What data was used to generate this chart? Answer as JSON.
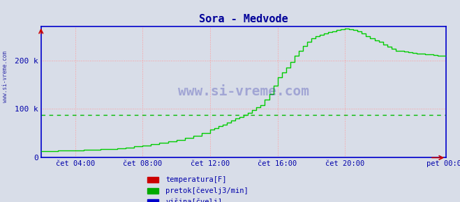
{
  "title": "Sora - Medvode",
  "title_color": "#000099",
  "bg_color": "#d8dde8",
  "plot_bg_color": "#d8dde8",
  "ylabel_color": "#0000aa",
  "axis_color": "#0000cc",
  "xlim": [
    0,
    288
  ],
  "ylim": [
    0,
    270000
  ],
  "yticks": [
    0,
    100000,
    200000
  ],
  "ytick_labels": [
    "0",
    "100 k",
    "200 k"
  ],
  "xtick_positions": [
    24,
    72,
    120,
    168,
    216,
    288
  ],
  "xtick_labels": [
    "čet 04:00",
    "čet 08:00",
    "čet 12:00",
    "čet 16:00",
    "čet 20:00",
    "pet 00:00"
  ],
  "watermark": "www.si-vreme.com",
  "watermark_color": "#000099",
  "avg_line_value": 88000,
  "avg_line_color": "#00bb00",
  "legend": [
    {
      "label": "temperatura[F]",
      "color": "#cc0000"
    },
    {
      "label": "pretok[čevelj3/min]",
      "color": "#00aa00"
    },
    {
      "label": "višina[čvelj]",
      "color": "#0000cc"
    }
  ],
  "flow_data_x": [
    0,
    6,
    12,
    18,
    24,
    30,
    36,
    42,
    48,
    54,
    60,
    66,
    72,
    78,
    84,
    90,
    96,
    102,
    108,
    114,
    120,
    123,
    126,
    129,
    132,
    135,
    138,
    141,
    144,
    147,
    150,
    153,
    156,
    159,
    162,
    165,
    168,
    171,
    174,
    177,
    180,
    183,
    186,
    189,
    192,
    195,
    198,
    201,
    204,
    207,
    210,
    213,
    216,
    219,
    222,
    225,
    228,
    231,
    234,
    237,
    240,
    243,
    246,
    249,
    252,
    255,
    258,
    261,
    264,
    267,
    270,
    273,
    276,
    279,
    282,
    285,
    288
  ],
  "flow_data_y": [
    13000,
    13500,
    14000,
    14500,
    15000,
    15500,
    16000,
    17000,
    18000,
    19500,
    21000,
    23000,
    25000,
    27500,
    30000,
    33000,
    36000,
    40000,
    45000,
    51000,
    58000,
    61000,
    65000,
    68000,
    72000,
    76000,
    80000,
    84000,
    88000,
    92000,
    97000,
    103000,
    108000,
    119000,
    130000,
    148000,
    165000,
    175000,
    185000,
    197000,
    210000,
    220000,
    230000,
    238000,
    245000,
    249000,
    252000,
    255000,
    258000,
    260000,
    262000,
    264000,
    265000,
    264000,
    263000,
    259000,
    255000,
    250000,
    245000,
    241000,
    238000,
    233000,
    228000,
    224000,
    220000,
    219000,
    218000,
    216000,
    215000,
    214000,
    213000,
    212000,
    212000,
    211000,
    210000,
    210000,
    210000
  ],
  "height_data_x": [
    0,
    288
  ],
  "height_data_y": [
    0,
    0
  ]
}
